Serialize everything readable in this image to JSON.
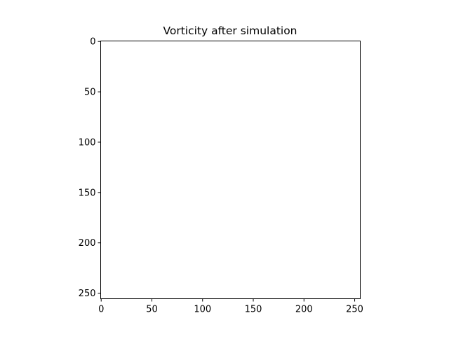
{
  "chart_data": {
    "type": "heatmap",
    "title": "Vorticity after simulation",
    "xlabel": "",
    "ylabel": "",
    "xlim": [
      -0.5,
      255.5
    ],
    "ylim": [
      255.5,
      -0.5
    ],
    "x_ticks": [
      0,
      50,
      100,
      150,
      200,
      250
    ],
    "y_ticks": [
      0,
      50,
      100,
      150,
      200,
      250
    ],
    "x_tick_labels": [
      "0",
      "50",
      "100",
      "150",
      "200",
      "250"
    ],
    "y_tick_labels": [
      "0",
      "50",
      "100",
      "150",
      "200",
      "250"
    ],
    "image_fill_color": "#ffffff",
    "grid": false,
    "legend": "none"
  }
}
